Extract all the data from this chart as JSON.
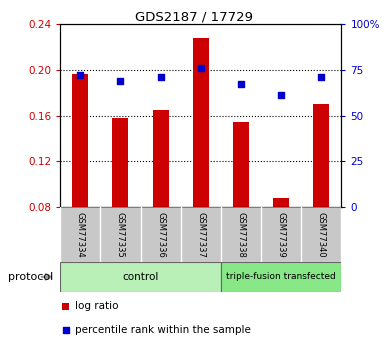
{
  "title": "GDS2187 / 17729",
  "samples": [
    "GSM77334",
    "GSM77335",
    "GSM77336",
    "GSM77337",
    "GSM77338",
    "GSM77339",
    "GSM77340"
  ],
  "log_ratio": [
    0.196,
    0.158,
    0.165,
    0.228,
    0.154,
    0.088,
    0.17
  ],
  "percentile_rank": [
    72,
    69,
    71,
    76,
    67,
    61,
    71
  ],
  "group_ctrl_n": 4,
  "group_tf_n": 3,
  "group_ctrl_label": "control",
  "group_tf_label": "triple-fusion transfected",
  "group_ctrl_color": "#b8f0b8",
  "group_tf_color": "#88e888",
  "ylim_left": [
    0.08,
    0.24
  ],
  "ylim_right": [
    0,
    100
  ],
  "yticks_left": [
    0.08,
    0.12,
    0.16,
    0.2,
    0.24
  ],
  "yticks_right": [
    0,
    25,
    50,
    75,
    100
  ],
  "ytick_labels_left": [
    "0.08",
    "0.12",
    "0.16",
    "0.20",
    "0.24"
  ],
  "ytick_labels_right": [
    "0",
    "25",
    "50",
    "75",
    "100%"
  ],
  "bar_color": "#cc0000",
  "dot_color": "#0000cc",
  "bar_width": 0.4,
  "background_color": "#ffffff",
  "protocol_label": "protocol",
  "legend_log_ratio": "log ratio",
  "legend_percentile": "percentile rank within the sample",
  "gray_box_color": "#c8c8c8",
  "gray_box_edge": "#888888"
}
